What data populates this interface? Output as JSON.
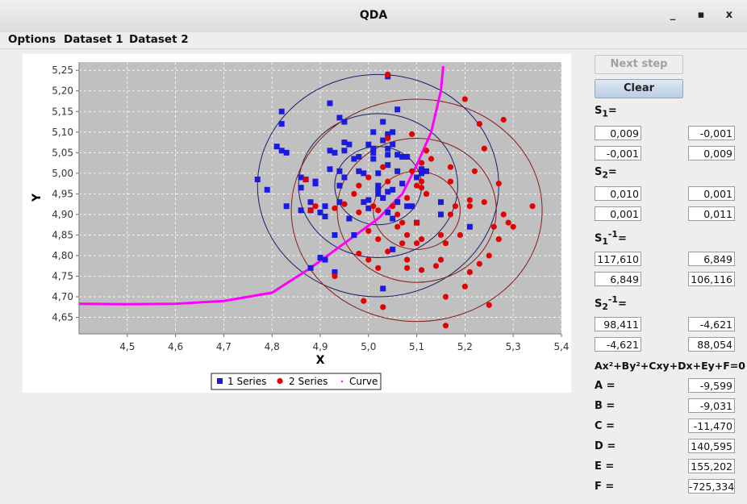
{
  "window": {
    "title": "QDA",
    "minimize": "_",
    "maximize": "▪",
    "close": "x"
  },
  "menu": {
    "items": [
      "Options",
      "Dataset 1",
      "Dataset 2"
    ]
  },
  "buttons": {
    "next_step": "Next step",
    "clear": "Clear"
  },
  "matrices": {
    "s1": {
      "label": "S",
      "sub": "1",
      "sup": "",
      "tail": "=",
      "values": [
        "0,009",
        "-0,001",
        "-0,001",
        "0,009"
      ]
    },
    "s2": {
      "label": "S",
      "sub": "2",
      "sup": "",
      "tail": "=",
      "values": [
        "0,010",
        "0,001",
        "0,001",
        "0,011"
      ]
    },
    "s1inv": {
      "label": "S",
      "sub": "1",
      "sup": "-1",
      "tail": "=",
      "values": [
        "117,610",
        "6,849",
        "6,849",
        "106,116"
      ]
    },
    "s2inv": {
      "label": "S",
      "sub": "2",
      "sup": "-1",
      "tail": "=",
      "values": [
        "98,411",
        "-4,621",
        "-4,621",
        "88,054"
      ]
    }
  },
  "equation": "Ax²+By²+Cxy+Dx+Ey+F=0",
  "coefficients": [
    {
      "label": "A =",
      "value": "-9,599"
    },
    {
      "label": "B =",
      "value": "-9,031"
    },
    {
      "label": "C =",
      "value": "-11,470"
    },
    {
      "label": "D =",
      "value": "140,595"
    },
    {
      "label": "E =",
      "value": "155,202"
    },
    {
      "label": "F =",
      "value": "-725,334"
    }
  ],
  "colors": {
    "series1": "#1a1ae0",
    "series2": "#e60000",
    "curve": "#ff00ff",
    "ellipse1": "#1c1c6e",
    "ellipse2": "#8b1a1a",
    "plot_bg": "#c0c0c0"
  },
  "chart_data": {
    "type": "scatter",
    "xlabel": "X",
    "ylabel": "Y",
    "xlim": [
      4.4,
      5.4
    ],
    "ylim": [
      4.61,
      5.27
    ],
    "xticks": [
      "4,5",
      "4,6",
      "4,7",
      "4,8",
      "4,9",
      "5,0",
      "5,1",
      "5,2",
      "5,3",
      "5,4"
    ],
    "yticks": [
      "4,65",
      "4,70",
      "4,75",
      "4,80",
      "4,85",
      "4,90",
      "4,95",
      "5,00",
      "5,05",
      "5,10",
      "5,15",
      "5,20",
      "5,25"
    ],
    "legend_position": "bottom",
    "series": [
      {
        "name": "1 Series",
        "marker": "square",
        "points": [
          [
            4.77,
            4.985
          ],
          [
            4.79,
            4.96
          ],
          [
            4.81,
            5.065
          ],
          [
            4.82,
            5.055
          ],
          [
            4.82,
            5.15
          ],
          [
            4.82,
            5.12
          ],
          [
            4.83,
            5.05
          ],
          [
            4.83,
            4.92
          ],
          [
            4.86,
            4.99
          ],
          [
            4.86,
            4.965
          ],
          [
            4.86,
            4.91
          ],
          [
            4.87,
            4.985
          ],
          [
            4.88,
            4.91
          ],
          [
            4.88,
            4.77
          ],
          [
            4.88,
            4.93
          ],
          [
            4.89,
            4.975
          ],
          [
            4.89,
            4.98
          ],
          [
            4.9,
            4.905
          ],
          [
            4.9,
            4.795
          ],
          [
            4.91,
            4.79
          ],
          [
            4.91,
            4.895
          ],
          [
            4.91,
            4.92
          ],
          [
            4.92,
            5.17
          ],
          [
            4.92,
            5.01
          ],
          [
            4.92,
            5.055
          ],
          [
            4.93,
            5.05
          ],
          [
            4.93,
            4.85
          ],
          [
            4.93,
            4.76
          ],
          [
            4.94,
            5.005
          ],
          [
            4.94,
            4.93
          ],
          [
            4.94,
            4.97
          ],
          [
            4.94,
            5.135
          ],
          [
            4.95,
            5.125
          ],
          [
            4.95,
            5.075
          ],
          [
            4.95,
            5.055
          ],
          [
            4.95,
            4.99
          ],
          [
            4.96,
            5.07
          ],
          [
            4.96,
            4.89
          ],
          [
            4.97,
            5.035
          ],
          [
            4.97,
            4.85
          ],
          [
            4.98,
            5.04
          ],
          [
            4.98,
            5.005
          ],
          [
            4.99,
            5.0
          ],
          [
            4.99,
            4.93
          ],
          [
            5.0,
            5.07
          ],
          [
            5.0,
            4.935
          ],
          [
            5.0,
            4.915
          ],
          [
            5.01,
            5.05
          ],
          [
            5.01,
            5.1
          ],
          [
            5.01,
            5.06
          ],
          [
            5.01,
            5.035
          ],
          [
            5.02,
            5.0
          ],
          [
            5.02,
            4.97
          ],
          [
            5.02,
            4.96
          ],
          [
            5.02,
            4.95
          ],
          [
            5.03,
            4.72
          ],
          [
            5.03,
            5.125
          ],
          [
            5.03,
            5.08
          ],
          [
            5.03,
            4.94
          ],
          [
            5.04,
            5.235
          ],
          [
            5.04,
            5.095
          ],
          [
            5.04,
            5.06
          ],
          [
            5.04,
            5.045
          ],
          [
            5.04,
            5.02
          ],
          [
            5.04,
            4.955
          ],
          [
            5.04,
            4.905
          ],
          [
            5.05,
            5.1
          ],
          [
            5.05,
            5.07
          ],
          [
            5.05,
            4.96
          ],
          [
            5.05,
            4.89
          ],
          [
            5.05,
            4.815
          ],
          [
            5.06,
            5.155
          ],
          [
            5.06,
            5.045
          ],
          [
            5.06,
            5.005
          ],
          [
            5.06,
            4.93
          ],
          [
            5.07,
            5.04
          ],
          [
            5.07,
            4.975
          ],
          [
            5.08,
            5.04
          ],
          [
            5.08,
            4.92
          ],
          [
            5.09,
            4.92
          ],
          [
            5.1,
            4.88
          ],
          [
            5.1,
            4.99
          ],
          [
            5.11,
            5.0
          ],
          [
            5.11,
            5.01
          ],
          [
            5.12,
            5.005
          ],
          [
            5.15,
            4.93
          ],
          [
            5.15,
            4.9
          ],
          [
            5.21,
            4.87
          ]
        ]
      },
      {
        "name": "2 Series",
        "marker": "circle",
        "points": [
          [
            4.87,
            4.985
          ],
          [
            4.88,
            4.91
          ],
          [
            4.89,
            4.92
          ],
          [
            4.93,
            4.75
          ],
          [
            4.93,
            4.915
          ],
          [
            4.95,
            4.925
          ],
          [
            4.97,
            4.95
          ],
          [
            4.98,
            4.905
          ],
          [
            4.98,
            4.805
          ],
          [
            4.98,
            4.97
          ],
          [
            4.99,
            4.69
          ],
          [
            5.0,
            4.79
          ],
          [
            5.0,
            4.86
          ],
          [
            5.0,
            4.99
          ],
          [
            5.01,
            4.92
          ],
          [
            5.02,
            4.77
          ],
          [
            5.02,
            4.84
          ],
          [
            5.02,
            4.91
          ],
          [
            5.03,
            5.015
          ],
          [
            5.03,
            4.675
          ],
          [
            5.04,
            4.98
          ],
          [
            5.04,
            4.81
          ],
          [
            5.04,
            5.085
          ],
          [
            5.04,
            5.24
          ],
          [
            5.05,
            4.92
          ],
          [
            5.06,
            4.87
          ],
          [
            5.06,
            4.9
          ],
          [
            5.07,
            4.83
          ],
          [
            5.07,
            4.88
          ],
          [
            5.08,
            4.77
          ],
          [
            5.08,
            4.79
          ],
          [
            5.08,
            4.85
          ],
          [
            5.08,
            4.94
          ],
          [
            5.09,
            5.095
          ],
          [
            5.09,
            5.005
          ],
          [
            5.1,
            4.97
          ],
          [
            5.1,
            4.88
          ],
          [
            5.1,
            4.83
          ],
          [
            5.11,
            4.765
          ],
          [
            5.11,
            4.98
          ],
          [
            5.11,
            4.965
          ],
          [
            5.11,
            5.025
          ],
          [
            5.12,
            4.95
          ],
          [
            5.12,
            5.055
          ],
          [
            5.13,
            5.035
          ],
          [
            5.14,
            4.775
          ],
          [
            5.15,
            4.85
          ],
          [
            5.15,
            4.79
          ],
          [
            5.16,
            4.63
          ],
          [
            5.16,
            4.7
          ],
          [
            5.16,
            4.83
          ],
          [
            5.17,
            4.9
          ],
          [
            5.17,
            4.98
          ],
          [
            5.17,
            5.015
          ],
          [
            5.18,
            4.92
          ],
          [
            5.19,
            4.85
          ],
          [
            5.2,
            5.18
          ],
          [
            5.2,
            4.725
          ],
          [
            5.21,
            4.92
          ],
          [
            5.21,
            4.76
          ],
          [
            5.21,
            4.935
          ],
          [
            5.22,
            5.005
          ],
          [
            5.23,
            5.12
          ],
          [
            5.23,
            4.78
          ],
          [
            5.24,
            4.93
          ],
          [
            5.24,
            5.06
          ],
          [
            5.25,
            4.8
          ],
          [
            5.25,
            4.68
          ],
          [
            5.26,
            4.87
          ],
          [
            5.27,
            4.975
          ],
          [
            5.27,
            4.84
          ],
          [
            5.28,
            5.13
          ],
          [
            5.28,
            4.9
          ],
          [
            5.29,
            4.88
          ],
          [
            5.3,
            4.87
          ],
          [
            5.34,
            4.92
          ],
          [
            5.12,
            4.95
          ],
          [
            5.11,
            4.84
          ]
        ]
      },
      {
        "name": "Curve",
        "marker": "dot"
      }
    ],
    "ellipses": [
      {
        "group": 1,
        "center": [
          5.02,
          4.97
        ],
        "rx": [
          0.09,
          0.165,
          0.25
        ],
        "ry": [
          0.095,
          0.175,
          0.27
        ]
      },
      {
        "group": 2,
        "center": [
          5.1,
          4.91
        ],
        "rx": [
          0.09,
          0.165,
          0.26
        ],
        "ry": [
          0.095,
          0.175,
          0.27
        ]
      }
    ],
    "curve_points": [
      [
        4.4,
        4.683
      ],
      [
        4.5,
        4.682
      ],
      [
        4.6,
        4.683
      ],
      [
        4.7,
        4.69
      ],
      [
        4.8,
        4.71
      ],
      [
        4.88,
        4.77
      ],
      [
        4.95,
        4.83
      ],
      [
        5.02,
        4.89
      ],
      [
        5.07,
        4.95
      ],
      [
        5.1,
        5.02
      ],
      [
        5.13,
        5.1
      ],
      [
        5.15,
        5.2
      ],
      [
        5.155,
        5.26
      ]
    ]
  }
}
